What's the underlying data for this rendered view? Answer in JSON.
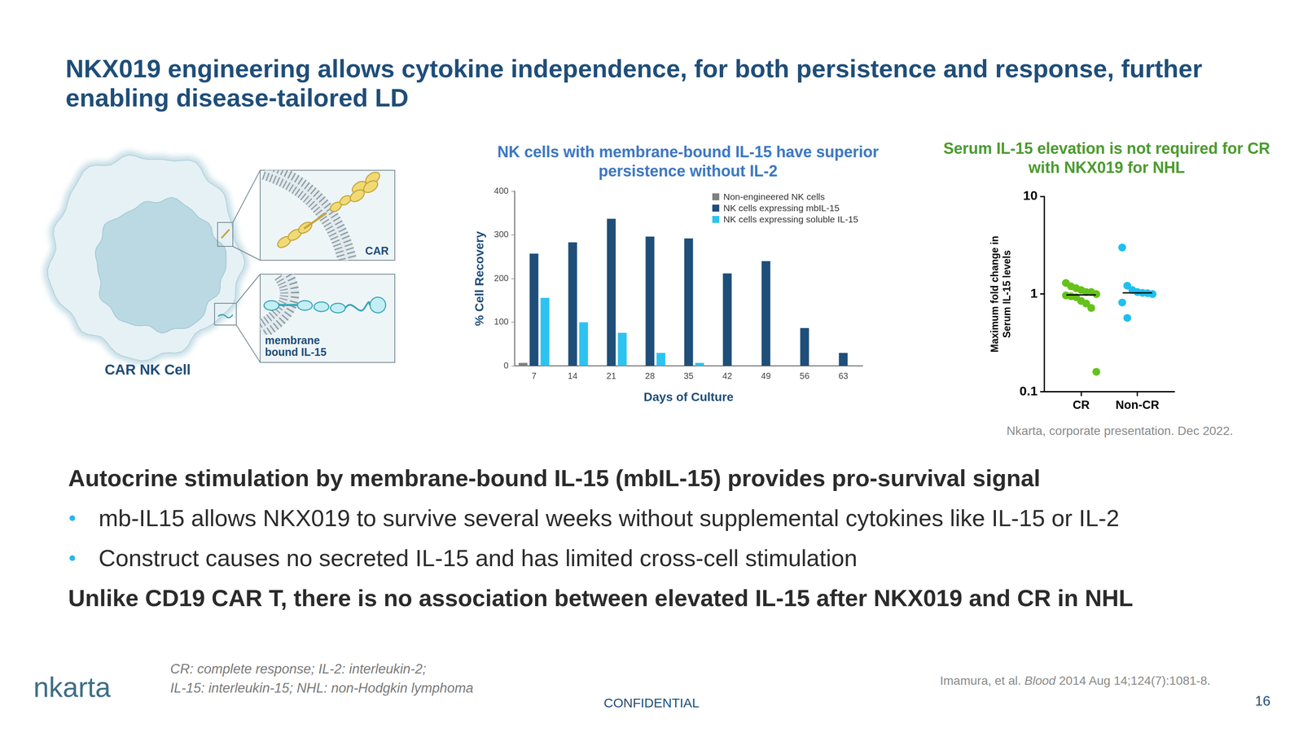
{
  "title": "NKX019 engineering allows cytokine independence, for both persistence and response, further enabling disease-tailored LD",
  "diagram": {
    "cell_label": "CAR NK Cell",
    "car_label": "CAR",
    "il15_label": "membrane bound IL-15"
  },
  "chart_data": [
    {
      "type": "bar",
      "title": "NK cells with membrane-bound IL-15 have superior persistence without IL-2",
      "categories": [
        7,
        14,
        21,
        28,
        35,
        42,
        49,
        56,
        63
      ],
      "series": [
        {
          "name": "Non-engineered NK cells",
          "color": "#808080",
          "values": [
            7,
            null,
            null,
            null,
            null,
            null,
            null,
            null,
            null
          ]
        },
        {
          "name": "NK cells expressing mbIL-15",
          "color": "#1f4e79",
          "values": [
            257,
            283,
            337,
            296,
            292,
            212,
            240,
            87,
            30
          ]
        },
        {
          "name": "NK cells expressing soluble IL-15",
          "color": "#2cc3f1",
          "values": [
            156,
            100,
            76,
            30,
            7,
            null,
            null,
            null,
            null
          ]
        }
      ],
      "x_label": "Days of Culture",
      "y_label": "% Cell Recovery",
      "ylim": [
        0,
        400
      ],
      "yticks": [
        0,
        100,
        200,
        300,
        400
      ],
      "grid": false,
      "legend": "upper right"
    },
    {
      "type": "scatter",
      "title": "Serum IL-15 elevation is not required for CR with NKX019 for NHL",
      "y_label": "Maximum fold change in Serum IL-15 levels",
      "categories": [
        "CR",
        "Non-CR"
      ],
      "values": [
        [
          1.3,
          1.2,
          1.15,
          1.1,
          1.05,
          1.05,
          1.0,
          0.97,
          0.95,
          0.93,
          0.85,
          0.8,
          0.72,
          0.16
        ],
        [
          3.0,
          1.22,
          1.1,
          1.05,
          1.03,
          1.02,
          1.0,
          0.82,
          0.57
        ]
      ],
      "colors": [
        "#66c21a",
        "#1fbff0"
      ],
      "medians": [
        0.98,
        1.03
      ],
      "log": "y",
      "ylim": [
        0.1,
        10
      ],
      "yticks": [
        0.1,
        1,
        10
      ],
      "grid": false,
      "marker": "circle"
    }
  ],
  "chart_source": "Nkarta, corporate presentation. Dec 2022.",
  "text": {
    "heading": "Autocrine stimulation by membrane-bound IL-15 (mbIL-15) provides pro-survival signal",
    "bullets": [
      "mb-IL15 allows NKX019 to survive several weeks without supplemental cytokines like IL-15 or IL-2",
      "Construct causes no secreted IL-15 and has limited cross-cell stimulation"
    ],
    "conclusion": "Unlike CD19 CAR T, there is no association between elevated IL-15 after NKX019 and CR in NHL"
  },
  "footer": {
    "logo": "nkarta",
    "abbreviations": [
      "CR: complete response; IL-2: interleukin-2;",
      "IL-15: interleukin-15; NHL: non-Hodgkin lymphoma"
    ],
    "confidential": "CONFIDENTIAL",
    "reference": {
      "authors": "Imamura, et al.",
      "journal": "Blood",
      "details": "2014 Aug 14;124(7):1081-8."
    },
    "page": "16"
  }
}
